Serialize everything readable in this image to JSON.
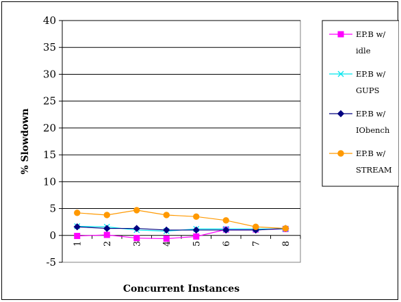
{
  "chart_data": {
    "type": "line",
    "title": "",
    "xlabel": "Concurrent Instances",
    "ylabel": "% Slowdown",
    "x": [
      1,
      2,
      3,
      4,
      5,
      6,
      7,
      8
    ],
    "x_tick_labels": [
      "1",
      "2",
      "3",
      "4",
      "5",
      "6",
      "7",
      "8"
    ],
    "ylim": [
      -5,
      40
    ],
    "y_ticks": [
      -5,
      0,
      5,
      10,
      15,
      20,
      25,
      30,
      35,
      40
    ],
    "grid": "horizontal",
    "legend_position": "right",
    "series": [
      {
        "name": "EP.B w/ idle",
        "legend_lines": [
          "EP.B w/",
          "idle"
        ],
        "color": "#ff00ff",
        "marker": "square",
        "values": [
          -0.1,
          0.1,
          -0.5,
          -0.6,
          -0.2,
          1.1,
          1.1,
          1.2
        ]
      },
      {
        "name": "EP.B w/ GUPS",
        "legend_lines": [
          "EP.B w/",
          "GUPS"
        ],
        "color": "#00e5ee",
        "marker": "x",
        "values": [
          1.7,
          1.6,
          1.0,
          0.8,
          1.2,
          1.2,
          1.2,
          1.2
        ]
      },
      {
        "name": "EP.B w/ IObench",
        "legend_lines": [
          "EP.B w/",
          "IObench"
        ],
        "color": "#000080",
        "marker": "diamond",
        "values": [
          1.6,
          1.3,
          1.3,
          1.0,
          1.0,
          1.0,
          1.0,
          1.3
        ]
      },
      {
        "name": "EP.B w/ STREAM",
        "legend_lines": [
          "EP.B w/",
          "STREAM"
        ],
        "color": "#ff9900",
        "marker": "circle",
        "values": [
          4.2,
          3.8,
          4.7,
          3.8,
          3.5,
          2.8,
          1.6,
          1.3
        ]
      }
    ]
  }
}
